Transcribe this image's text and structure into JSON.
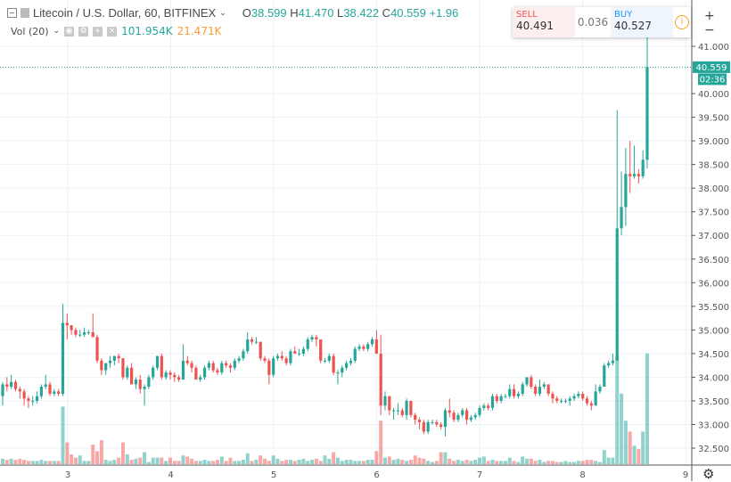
{
  "header": {
    "symbol": "Litecoin / U.S. Dollar, 60, BITFINEX",
    "o_label": "O",
    "o": "38.599",
    "h_label": "H",
    "h": "41.470",
    "l_label": "L",
    "l": "38.422",
    "c_label": "C",
    "c": "40.559",
    "change": "+1.96"
  },
  "volume": {
    "label": "Vol (20)",
    "value": "101.954K",
    "ma": "21.471K"
  },
  "trade": {
    "sell_label": "SELL",
    "sell": "40.491",
    "spread": "0.036",
    "buy_label": "BUY",
    "buy": "40.527"
  },
  "price_axis": {
    "ticks": [
      "32.500",
      "33.000",
      "33.500",
      "34.000",
      "34.500",
      "35.000",
      "35.500",
      "36.000",
      "36.500",
      "37.000",
      "37.500",
      "38.000",
      "38.500",
      "39.000",
      "39.500",
      "40.000",
      "41.000"
    ],
    "last_price": "40.559",
    "countdown": "02:36"
  },
  "time_axis": {
    "ticks": [
      "3",
      "4",
      "5",
      "6",
      "7",
      "8",
      "9"
    ]
  },
  "colors": {
    "up": "#26a69a",
    "down": "#ef5350",
    "grid": "#eef2f6"
  },
  "chart_data": {
    "type": "candlestick",
    "interval": "60",
    "ylim": [
      32.3,
      41.5
    ],
    "candles": [
      [
        33.6,
        33.9,
        33.4,
        33.85,
        5
      ],
      [
        33.85,
        34.0,
        33.7,
        33.8,
        4
      ],
      [
        33.8,
        34.05,
        33.75,
        33.9,
        5
      ],
      [
        33.9,
        33.95,
        33.7,
        33.75,
        4
      ],
      [
        33.75,
        33.8,
        33.55,
        33.7,
        5
      ],
      [
        33.7,
        33.75,
        33.4,
        33.55,
        4
      ],
      [
        33.55,
        33.6,
        33.35,
        33.5,
        3
      ],
      [
        33.5,
        33.6,
        33.4,
        33.5,
        3
      ],
      [
        33.5,
        33.7,
        33.45,
        33.6,
        3
      ],
      [
        33.6,
        33.85,
        33.55,
        33.8,
        4
      ],
      [
        33.8,
        34.05,
        33.75,
        33.85,
        3
      ],
      [
        33.85,
        33.9,
        33.6,
        33.65,
        3
      ],
      [
        33.65,
        33.75,
        33.6,
        33.7,
        3
      ],
      [
        33.7,
        33.75,
        33.6,
        33.65,
        3
      ],
      [
        33.65,
        35.55,
        33.6,
        35.15,
        53
      ],
      [
        35.15,
        35.35,
        34.8,
        35.1,
        20
      ],
      [
        35.1,
        35.1,
        34.9,
        35.0,
        9
      ],
      [
        35.0,
        35.05,
        34.85,
        34.9,
        6
      ],
      [
        34.9,
        35.0,
        34.85,
        34.9,
        8
      ],
      [
        34.9,
        35.05,
        34.85,
        34.95,
        3
      ],
      [
        34.95,
        35.0,
        34.9,
        34.95,
        3
      ],
      [
        34.95,
        35.35,
        34.85,
        34.85,
        18
      ],
      [
        34.85,
        34.9,
        34.3,
        34.35,
        12
      ],
      [
        34.35,
        34.4,
        34.05,
        34.15,
        22
      ],
      [
        34.15,
        34.3,
        34.05,
        34.3,
        4
      ],
      [
        34.3,
        34.45,
        34.2,
        34.35,
        3
      ],
      [
        34.35,
        34.45,
        34.25,
        34.45,
        4
      ],
      [
        34.45,
        34.5,
        34.3,
        34.4,
        6
      ],
      [
        34.4,
        34.4,
        33.95,
        34.0,
        20
      ],
      [
        34.0,
        34.25,
        33.95,
        34.2,
        9
      ],
      [
        34.2,
        34.3,
        33.85,
        33.85,
        4
      ],
      [
        33.85,
        34.0,
        33.75,
        33.95,
        5
      ],
      [
        33.95,
        34.05,
        33.65,
        33.75,
        6
      ],
      [
        33.75,
        33.85,
        33.4,
        33.8,
        11
      ],
      [
        33.8,
        34.05,
        33.75,
        34.0,
        2
      ],
      [
        34.0,
        34.25,
        33.95,
        34.2,
        6
      ],
      [
        34.2,
        34.45,
        34.15,
        34.45,
        6
      ],
      [
        34.45,
        34.5,
        33.95,
        34.0,
        6
      ],
      [
        34.0,
        34.15,
        33.95,
        34.1,
        3
      ],
      [
        34.1,
        34.15,
        33.95,
        34.05,
        6
      ],
      [
        34.05,
        34.1,
        33.9,
        34.0,
        3
      ],
      [
        34.0,
        34.05,
        33.9,
        33.95,
        3
      ],
      [
        33.95,
        34.7,
        33.95,
        34.35,
        8
      ],
      [
        34.35,
        34.45,
        34.25,
        34.3,
        7
      ],
      [
        34.3,
        34.35,
        34.1,
        34.2,
        5
      ],
      [
        34.2,
        34.25,
        33.95,
        33.95,
        3
      ],
      [
        33.95,
        34.05,
        33.9,
        34.0,
        3
      ],
      [
        34.0,
        34.25,
        33.95,
        34.2,
        4
      ],
      [
        34.2,
        34.35,
        34.15,
        34.3,
        3
      ],
      [
        34.3,
        34.35,
        34.1,
        34.15,
        3
      ],
      [
        34.15,
        34.2,
        34.05,
        34.1,
        4
      ],
      [
        34.1,
        34.35,
        34.05,
        34.3,
        7
      ],
      [
        34.3,
        34.35,
        34.2,
        34.25,
        3
      ],
      [
        34.25,
        34.3,
        34.1,
        34.2,
        6
      ],
      [
        34.2,
        34.4,
        34.15,
        34.35,
        3
      ],
      [
        34.35,
        34.45,
        34.3,
        34.4,
        3
      ],
      [
        34.4,
        34.6,
        34.35,
        34.55,
        4
      ],
      [
        34.55,
        34.95,
        34.5,
        34.8,
        10
      ],
      [
        34.8,
        34.85,
        34.7,
        34.75,
        3
      ],
      [
        34.75,
        34.85,
        34.7,
        34.75,
        4
      ],
      [
        34.75,
        34.75,
        34.35,
        34.4,
        8
      ],
      [
        34.4,
        34.45,
        34.3,
        34.35,
        5
      ],
      [
        34.35,
        34.4,
        33.85,
        34.05,
        3
      ],
      [
        34.05,
        34.45,
        34.0,
        34.4,
        8
      ],
      [
        34.4,
        34.5,
        34.35,
        34.45,
        5
      ],
      [
        34.45,
        34.55,
        34.35,
        34.4,
        3
      ],
      [
        34.4,
        34.45,
        34.25,
        34.3,
        4
      ],
      [
        34.3,
        34.6,
        34.25,
        34.55,
        4
      ],
      [
        34.55,
        34.65,
        34.5,
        34.5,
        3
      ],
      [
        34.5,
        34.6,
        34.45,
        34.5,
        4
      ],
      [
        34.5,
        34.65,
        34.45,
        34.6,
        5
      ],
      [
        34.6,
        34.85,
        34.55,
        34.8,
        3
      ],
      [
        34.8,
        34.9,
        34.75,
        34.85,
        4
      ],
      [
        34.85,
        34.9,
        34.65,
        34.8,
        5
      ],
      [
        34.8,
        34.8,
        34.3,
        34.35,
        3
      ],
      [
        34.35,
        34.4,
        34.3,
        34.35,
        8
      ],
      [
        34.35,
        34.5,
        34.3,
        34.45,
        5
      ],
      [
        34.45,
        34.5,
        34.05,
        34.1,
        11
      ],
      [
        34.1,
        34.15,
        33.85,
        34.1,
        6
      ],
      [
        34.1,
        34.25,
        34.0,
        34.2,
        3
      ],
      [
        34.2,
        34.35,
        34.15,
        34.3,
        4
      ],
      [
        34.3,
        34.4,
        34.25,
        34.35,
        4
      ],
      [
        34.35,
        34.65,
        34.3,
        34.6,
        3
      ],
      [
        34.6,
        34.7,
        34.55,
        34.65,
        3
      ],
      [
        34.65,
        34.7,
        34.55,
        34.6,
        3
      ],
      [
        34.6,
        34.75,
        34.55,
        34.7,
        4
      ],
      [
        34.7,
        34.85,
        34.65,
        34.8,
        4
      ],
      [
        34.8,
        35.0,
        34.5,
        34.5,
        12
      ],
      [
        34.5,
        34.9,
        33.2,
        33.4,
        40
      ],
      [
        33.4,
        33.7,
        33.3,
        33.6,
        6
      ],
      [
        33.6,
        33.6,
        33.2,
        33.3,
        7
      ],
      [
        33.3,
        33.35,
        33.1,
        33.3,
        4
      ],
      [
        33.3,
        33.45,
        33.2,
        33.3,
        5
      ],
      [
        33.3,
        33.35,
        33.15,
        33.2,
        4
      ],
      [
        33.2,
        33.55,
        33.1,
        33.5,
        3
      ],
      [
        33.5,
        33.5,
        33.15,
        33.2,
        4
      ],
      [
        33.2,
        33.25,
        33.0,
        33.1,
        8
      ],
      [
        33.1,
        33.15,
        32.9,
        33.05,
        6
      ],
      [
        33.05,
        33.1,
        32.8,
        32.85,
        5
      ],
      [
        32.85,
        33.1,
        32.8,
        33.05,
        3
      ],
      [
        33.05,
        33.1,
        33.0,
        33.05,
        2
      ],
      [
        33.05,
        33.1,
        32.95,
        33.0,
        3
      ],
      [
        33.0,
        33.05,
        32.9,
        32.95,
        11
      ],
      [
        32.95,
        33.35,
        32.75,
        33.3,
        11
      ],
      [
        33.3,
        33.55,
        33.15,
        33.25,
        5
      ],
      [
        33.25,
        33.3,
        33.05,
        33.1,
        3
      ],
      [
        33.1,
        33.25,
        33.05,
        33.2,
        4
      ],
      [
        33.2,
        33.35,
        33.15,
        33.3,
        3
      ],
      [
        33.3,
        33.35,
        33.0,
        33.1,
        4
      ],
      [
        33.1,
        33.2,
        33.05,
        33.15,
        3
      ],
      [
        33.15,
        33.25,
        33.1,
        33.2,
        4
      ],
      [
        33.2,
        33.4,
        33.15,
        33.35,
        6
      ],
      [
        33.35,
        33.45,
        33.3,
        33.4,
        7
      ],
      [
        33.4,
        33.45,
        33.3,
        33.35,
        3
      ],
      [
        33.35,
        33.65,
        33.3,
        33.6,
        4
      ],
      [
        33.6,
        33.65,
        33.45,
        33.5,
        3
      ],
      [
        33.5,
        33.65,
        33.45,
        33.6,
        3
      ],
      [
        33.6,
        33.65,
        33.55,
        33.6,
        3
      ],
      [
        33.6,
        33.85,
        33.55,
        33.75,
        6
      ],
      [
        33.75,
        33.85,
        33.55,
        33.6,
        3
      ],
      [
        33.6,
        33.7,
        33.55,
        33.65,
        2
      ],
      [
        33.65,
        33.9,
        33.6,
        33.85,
        7
      ],
      [
        33.85,
        34.0,
        33.8,
        34.0,
        5
      ],
      [
        34.0,
        34.05,
        33.75,
        33.8,
        5
      ],
      [
        33.8,
        33.85,
        33.6,
        33.65,
        3
      ],
      [
        33.65,
        33.95,
        33.6,
        33.8,
        4
      ],
      [
        33.8,
        33.9,
        33.75,
        33.85,
        2
      ],
      [
        33.85,
        33.85,
        33.6,
        33.65,
        3
      ],
      [
        33.65,
        33.7,
        33.45,
        33.55,
        3
      ],
      [
        33.55,
        33.6,
        33.45,
        33.5,
        2
      ],
      [
        33.5,
        33.55,
        33.45,
        33.5,
        2
      ],
      [
        33.5,
        33.55,
        33.45,
        33.5,
        3
      ],
      [
        33.5,
        33.6,
        33.4,
        33.55,
        2
      ],
      [
        33.55,
        33.65,
        33.5,
        33.6,
        2
      ],
      [
        33.6,
        33.7,
        33.55,
        33.65,
        3
      ],
      [
        33.65,
        33.7,
        33.5,
        33.55,
        3
      ],
      [
        33.55,
        33.6,
        33.4,
        33.45,
        4
      ],
      [
        33.45,
        33.5,
        33.3,
        33.4,
        4
      ],
      [
        33.4,
        33.85,
        33.4,
        33.7,
        3
      ],
      [
        33.7,
        33.85,
        33.65,
        33.8,
        2
      ],
      [
        33.8,
        34.3,
        33.8,
        34.25,
        13
      ],
      [
        34.25,
        34.35,
        34.2,
        34.3,
        6
      ],
      [
        34.3,
        34.5,
        34.25,
        34.35,
        6
      ],
      [
        34.35,
        39.65,
        34.35,
        37.15,
        100
      ],
      [
        37.15,
        38.35,
        37.0,
        37.6,
        65
      ],
      [
        37.6,
        38.85,
        37.2,
        38.3,
        40
      ],
      [
        38.3,
        39.0,
        37.9,
        38.25,
        30
      ],
      [
        38.25,
        38.9,
        38.2,
        38.3,
        17
      ],
      [
        38.3,
        38.4,
        38.1,
        38.25,
        14
      ],
      [
        38.25,
        38.8,
        38.2,
        38.6,
        30
      ],
      [
        38.6,
        41.47,
        38.42,
        40.559,
        101.954
      ]
    ]
  }
}
